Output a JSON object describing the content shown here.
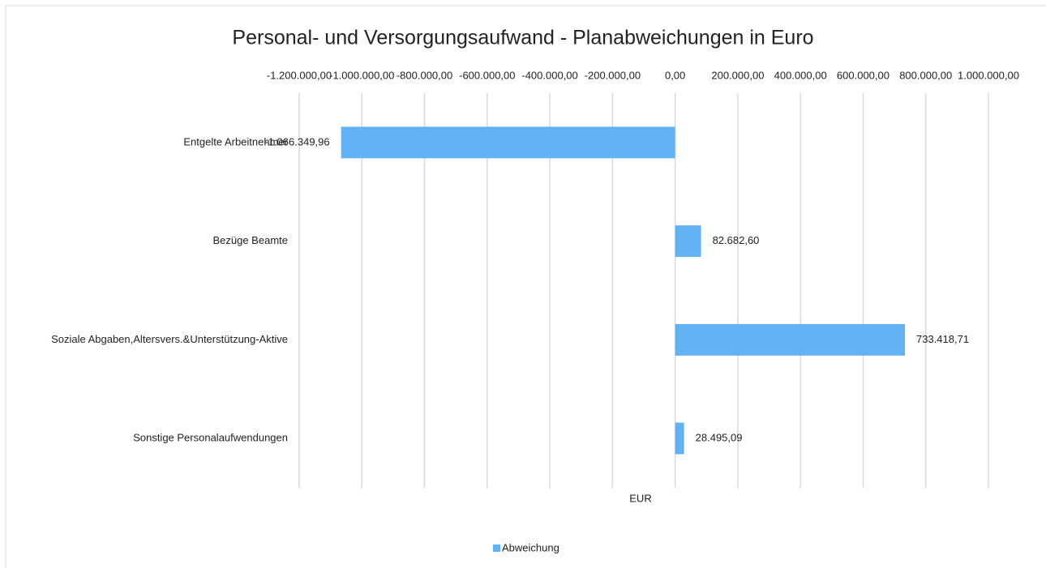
{
  "chart_data": {
    "type": "bar",
    "orientation": "horizontal",
    "title": "Personal- und Versorgungsaufwand - Planabweichungen in Euro",
    "xlabel": "EUR",
    "categories": [
      "Entgelte Arbeitnehmer",
      "Bezüge Beamte",
      "Soziale Abgaben,Altersvers.&Unterstützung-Aktive",
      "Sonstige Personalaufwendungen"
    ],
    "series": [
      {
        "name": "Abweichung",
        "color": "#63b3f4",
        "values": [
          -1066349.96,
          82682.6,
          733418.71,
          28495.09
        ],
        "value_labels": [
          "-1.066.349,96",
          "82.682,60",
          "733.418,71",
          "28.495,09"
        ]
      }
    ],
    "xlim": [
      -1200000,
      1000000
    ],
    "xticks": [
      {
        "value": -1200000,
        "label": "-1.200.000,00"
      },
      {
        "value": -1000000,
        "label": "-1.000.000,00"
      },
      {
        "value": -800000,
        "label": "-800.000,00"
      },
      {
        "value": -600000,
        "label": "-600.000,00"
      },
      {
        "value": -400000,
        "label": "-400.000,00"
      },
      {
        "value": -200000,
        "label": "-200.000,00"
      },
      {
        "value": 0,
        "label": "0,00"
      },
      {
        "value": 200000,
        "label": "200.000,00"
      },
      {
        "value": 400000,
        "label": "400.000,00"
      },
      {
        "value": 600000,
        "label": "600.000,00"
      },
      {
        "value": 800000,
        "label": "800.000,00"
      },
      {
        "value": 1000000,
        "label": "1.000.000,00"
      }
    ],
    "grid": true,
    "legend": "bottom"
  }
}
